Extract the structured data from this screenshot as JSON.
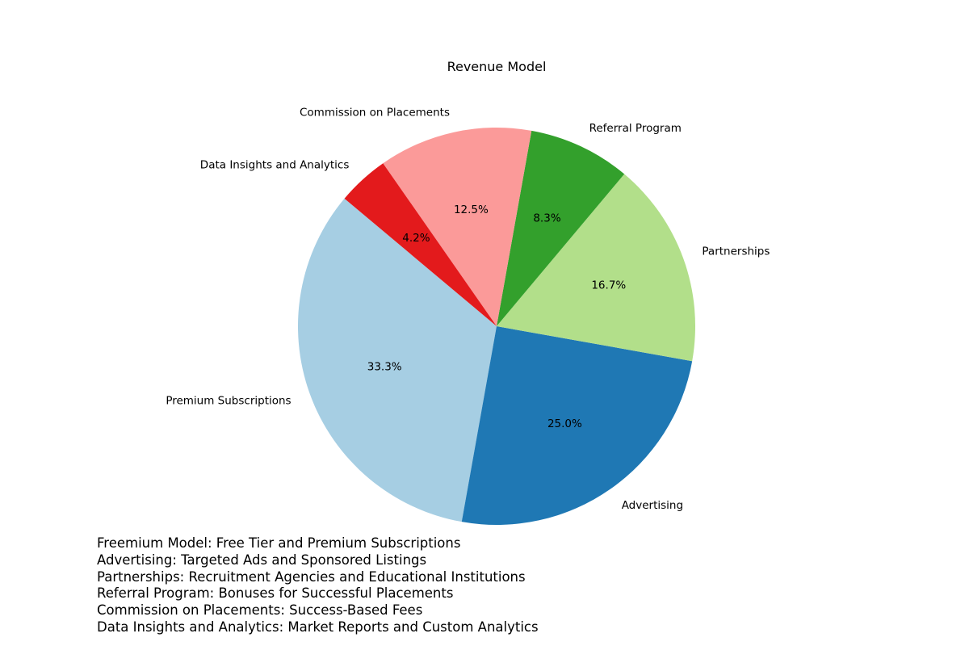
{
  "chart_data": {
    "type": "pie",
    "title": "Revenue Model",
    "start_angle_deg": 140,
    "direction": "counterclockwise",
    "slices": [
      {
        "label": "Premium Subscriptions",
        "value": 33.3,
        "pct_label": "33.3%",
        "color": "#a6cee3"
      },
      {
        "label": "Advertising",
        "value": 25.0,
        "pct_label": "25.0%",
        "color": "#1f78b4"
      },
      {
        "label": "Partnerships",
        "value": 16.7,
        "pct_label": "16.7%",
        "color": "#b2df8a"
      },
      {
        "label": "Referral Program",
        "value": 8.3,
        "pct_label": "8.3%",
        "color": "#33a02c"
      },
      {
        "label": "Commission on Placements",
        "value": 12.5,
        "pct_label": "12.5%",
        "color": "#fb9a99"
      },
      {
        "label": "Data Insights and Analytics",
        "value": 4.2,
        "pct_label": "4.2%",
        "color": "#e31a1c"
      }
    ]
  },
  "notes": [
    "Freemium Model: Free Tier and Premium Subscriptions",
    "Advertising: Targeted Ads and Sponsored Listings",
    "Partnerships: Recruitment Agencies and Educational Institutions",
    "Referral Program: Bonuses for Successful Placements",
    "Commission on Placements: Success-Based Fees",
    "Data Insights and Analytics: Market Reports and Custom Analytics"
  ]
}
